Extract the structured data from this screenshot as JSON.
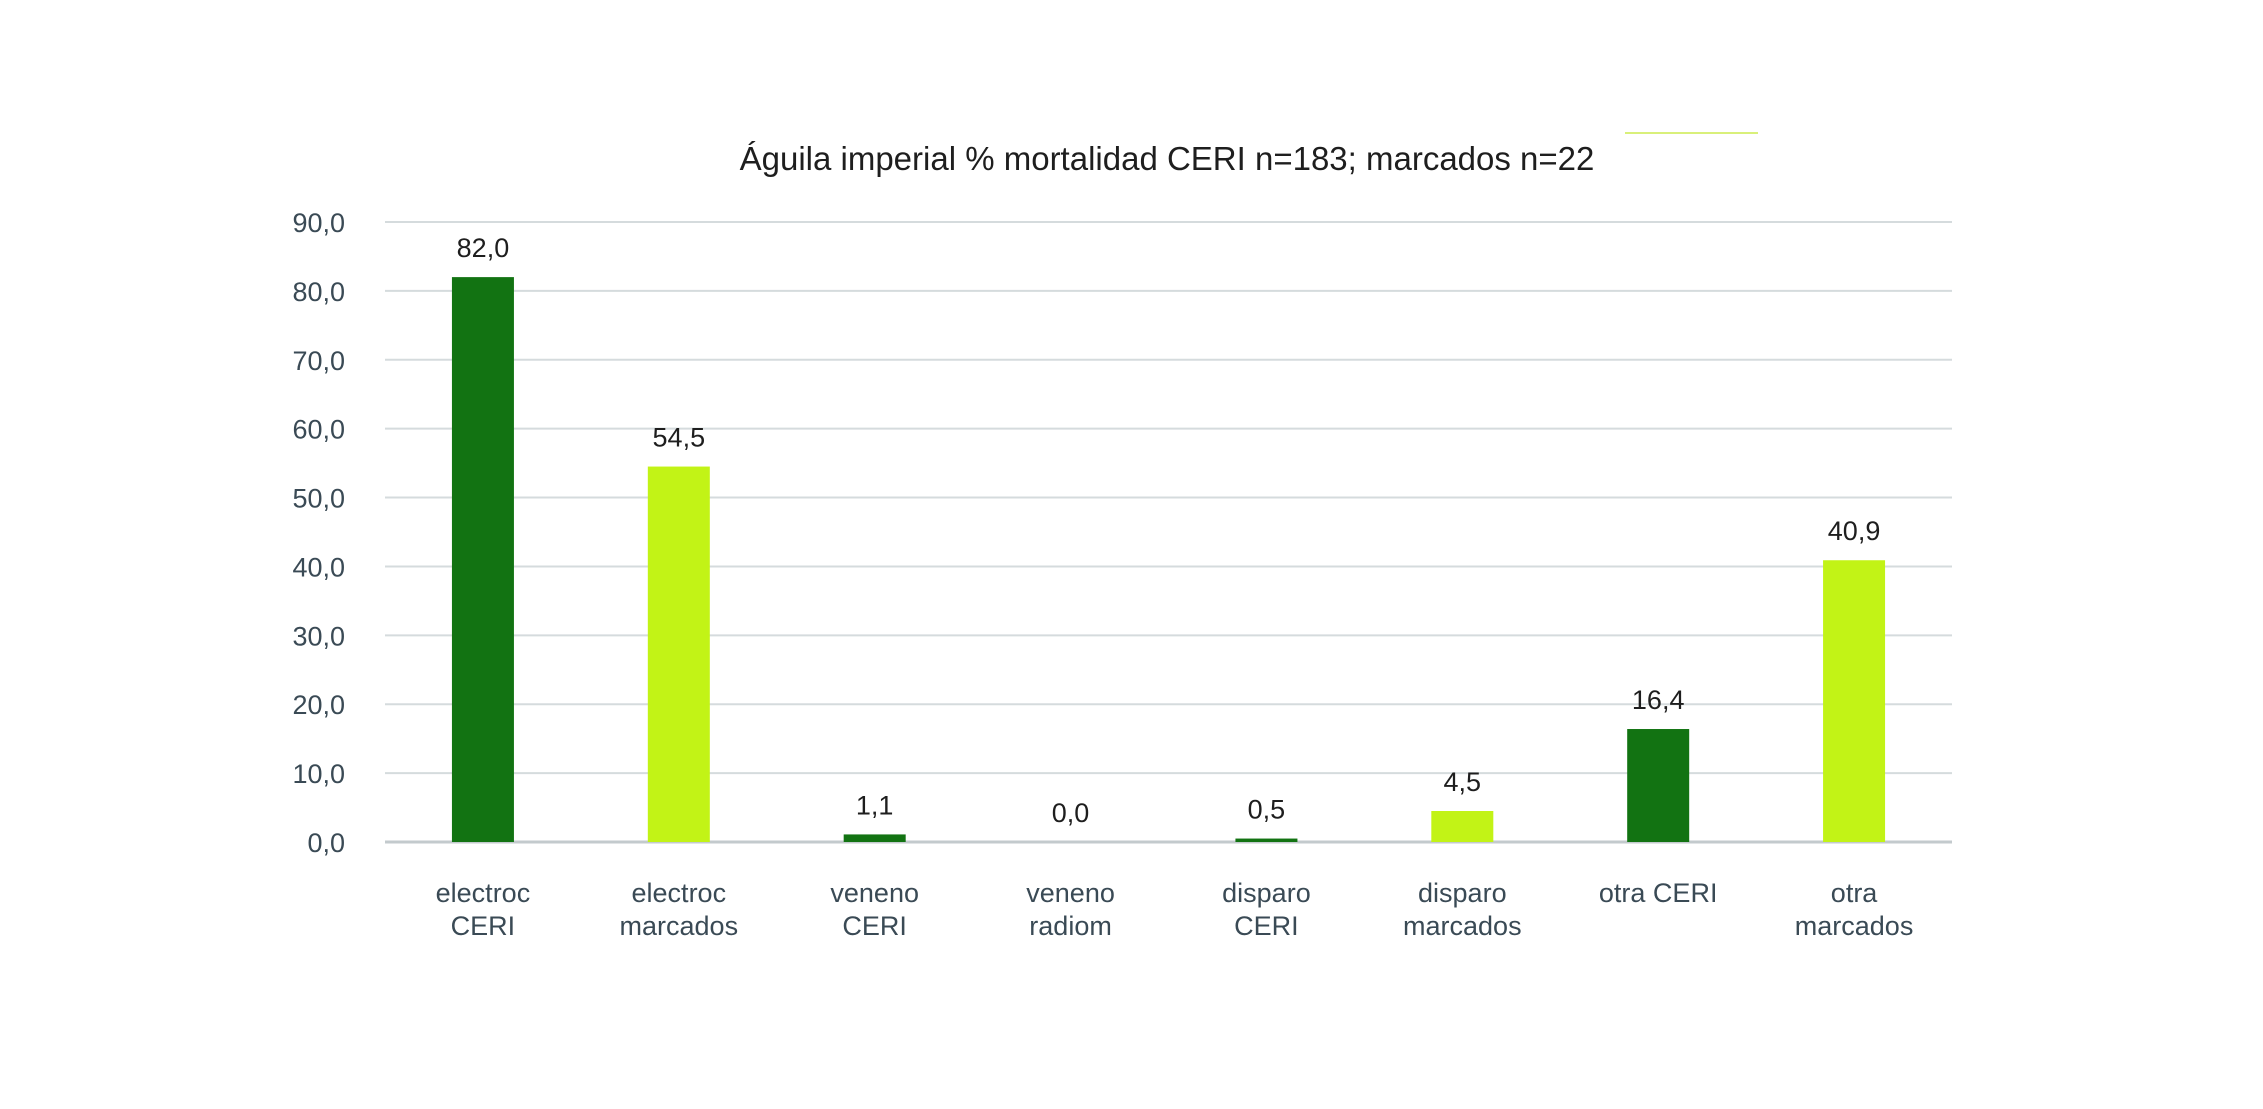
{
  "chart_data": {
    "type": "bar",
    "title": "Águila imperial % mortalidad CERI n=183; marcados n=22",
    "xlabel": "",
    "ylabel": "",
    "ylim": [
      0,
      90
    ],
    "yticks": [
      "0,0",
      "10,0",
      "20,0",
      "30,0",
      "40,0",
      "50,0",
      "60,0",
      "70,0",
      "80,0",
      "90,0"
    ],
    "grid": true,
    "legend": "none",
    "categories": [
      [
        "electroc",
        "CERI"
      ],
      [
        "electroc",
        "marcados"
      ],
      [
        "veneno",
        "CERI"
      ],
      [
        "veneno",
        "radiom"
      ],
      [
        "disparo",
        "CERI"
      ],
      [
        "disparo",
        "marcados"
      ],
      [
        "otra CERI"
      ],
      [
        "otra",
        "marcados"
      ]
    ],
    "values": [
      82.0,
      54.5,
      1.1,
      0.0,
      0.5,
      4.5,
      16.4,
      40.9
    ],
    "data_labels": [
      "82,0",
      "54,5",
      "1,1",
      "0,0",
      "0,5",
      "4,5",
      "16,4",
      "40,9"
    ],
    "bar_colors": [
      "#127312",
      "#c2f316",
      "#127312",
      "#127312",
      "#127312",
      "#c2f316",
      "#127312",
      "#c2f316"
    ]
  }
}
